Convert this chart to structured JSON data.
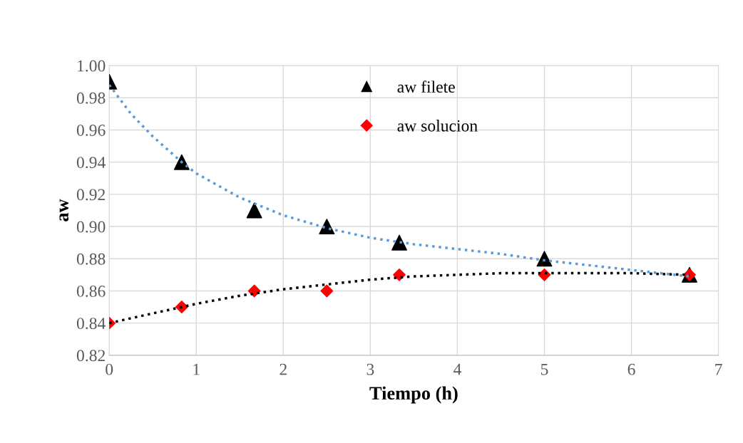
{
  "chart_data": {
    "type": "scatter",
    "xlabel": "Tiempo (h)",
    "ylabel": "aw",
    "xlim": [
      0,
      7
    ],
    "xticks": [
      0,
      1,
      2,
      3,
      4,
      5,
      6,
      7
    ],
    "ylim": [
      0.82,
      1.0
    ],
    "yticks": [
      {
        "value": 0.82,
        "label": "0.82"
      },
      {
        "value": 0.84,
        "label": "0.84"
      },
      {
        "value": 0.86,
        "label": "0.86"
      },
      {
        "value": 0.88,
        "label": "0.88"
      },
      {
        "value": 0.9,
        "label": "0.90"
      },
      {
        "value": 0.92,
        "label": "0.92"
      },
      {
        "value": 0.94,
        "label": "0.94"
      },
      {
        "value": 0.96,
        "label": "0.96"
      },
      {
        "value": 0.98,
        "label": "0.98"
      },
      {
        "value": 1.0,
        "label": "1.00"
      }
    ],
    "grid": true,
    "legend": "top",
    "series": [
      {
        "type": "line",
        "color": "#5b9bd5",
        "line_style": "dotted",
        "marker": "none",
        "x": [
          0,
          0.25,
          0.5,
          0.833,
          1,
          1.5,
          2,
          2.5,
          3,
          3.5,
          4,
          4.5,
          5,
          5.5,
          6,
          6.667
        ],
        "values": [
          0.988,
          0.97,
          0.956,
          0.94,
          0.933,
          0.918,
          0.907,
          0.899,
          0.893,
          0.889,
          0.886,
          0.883,
          0.879,
          0.876,
          0.873,
          0.869
        ]
      },
      {
        "type": "line",
        "color": "#000000",
        "line_style": "dotted",
        "marker": "none",
        "x": [
          0,
          0.5,
          1,
          1.5,
          2,
          2.5,
          3,
          3.5,
          4,
          4.5,
          5,
          5.5,
          6,
          6.667
        ],
        "values": [
          0.84,
          0.846,
          0.852,
          0.857,
          0.861,
          0.864,
          0.867,
          0.869,
          0.87,
          0.871,
          0.871,
          0.871,
          0.871,
          0.87
        ]
      },
      {
        "name": "aw filete",
        "color": "#000000",
        "marker": "triangle",
        "x": [
          0,
          0.833,
          1.667,
          2.5,
          3.333,
          5,
          6.667
        ],
        "values": [
          0.99,
          0.94,
          0.91,
          0.9,
          0.89,
          0.88,
          0.87
        ]
      },
      {
        "name": "aw solucion",
        "color": "#ff0000",
        "marker": "diamond",
        "x": [
          0,
          0.833,
          1.667,
          2.5,
          3.333,
          5,
          6.667
        ],
        "values": [
          0.84,
          0.85,
          0.86,
          0.86,
          0.87,
          0.87,
          0.87
        ]
      }
    ]
  }
}
